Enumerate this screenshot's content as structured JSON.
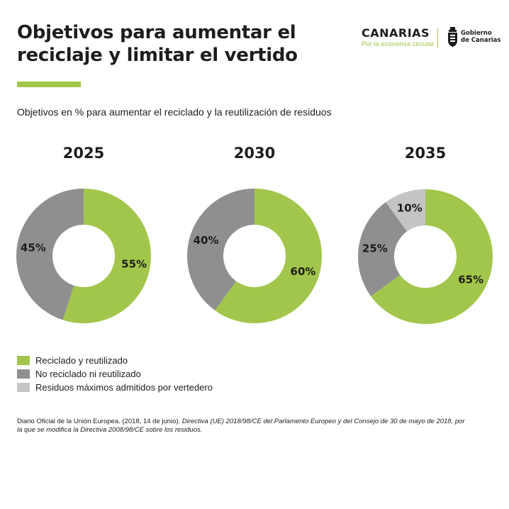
{
  "title": {
    "line1": "Objetivos para aumentar el",
    "line2": "reciclaje y limitar el vertido"
  },
  "brand": {
    "name": "CANARIAS",
    "tagline": "Por la economía circular",
    "gov_line1": "Gobierno",
    "gov_line2": "de Canarias",
    "gov_icon": "coat-of-arms-icon"
  },
  "colors": {
    "accent": "#a2c64b",
    "recycled": "#a2c64b",
    "not_recycled": "#8f8f8f",
    "landfill": "#c4c4c4",
    "text": "#1d1d1b"
  },
  "chart_data": {
    "type": "pie",
    "title": "Objetivos en % para aumentar el reciclado y la reutilización de residuos",
    "legend_position": "bottom-left",
    "legend": [
      "Reciclado y reutilizado",
      "No reciclado ni reutilizado",
      "Residuos máximos admitidos por vertedero"
    ],
    "charts": [
      {
        "year": "2025",
        "slices": [
          {
            "series": "Reciclado y reutilizado",
            "value": 55,
            "label": "55%"
          },
          {
            "series": "No reciclado ni reutilizado",
            "value": 45,
            "label": "45%"
          }
        ]
      },
      {
        "year": "2030",
        "slices": [
          {
            "series": "Reciclado y reutilizado",
            "value": 60,
            "label": "60%"
          },
          {
            "series": "No reciclado ni reutilizado",
            "value": 40,
            "label": "40%"
          }
        ]
      },
      {
        "year": "2035",
        "slices": [
          {
            "series": "Reciclado y reutilizado",
            "value": 65,
            "label": "65%"
          },
          {
            "series": "No reciclado ni reutilizado",
            "value": 25,
            "label": "25%"
          },
          {
            "series": "Residuos máximos admitidos por vertedero",
            "value": 10,
            "label": "10%"
          }
        ]
      }
    ]
  },
  "source": {
    "plain": "Diario Oficial de la Unión Europea. (2018, 14 de junio). ",
    "italic": "Directiva (UE) 2018/98/CE del Parlamento Europeo y del Consejo de 30 de mayo de 2018, por la que se modifica la Directiva 2008/98/CE sobre los residuos."
  }
}
